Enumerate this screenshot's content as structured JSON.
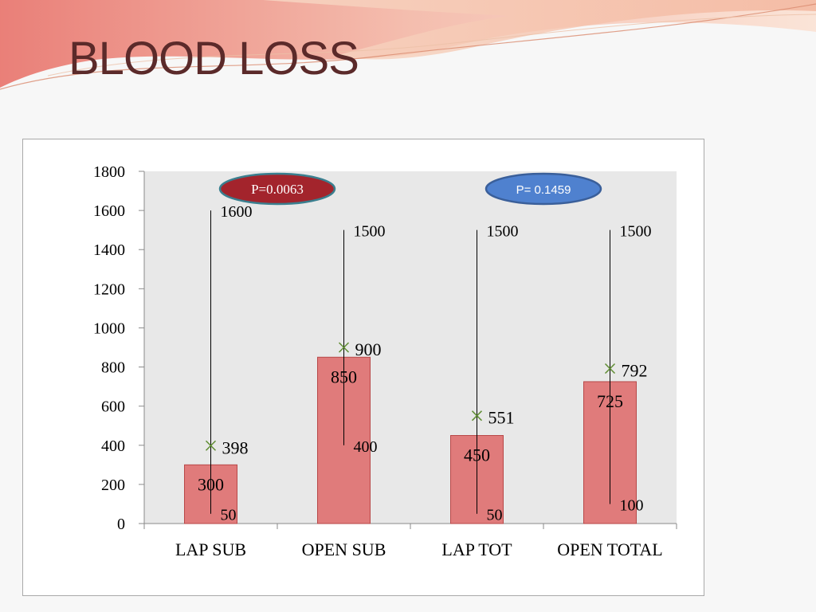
{
  "slide": {
    "title": "BLOOD LOSS"
  },
  "colors": {
    "bar_fill": "#e07b7b",
    "bar_stroke": "#b84848",
    "mean_marker": "#5e8c31",
    "plot_bg": "#e8e8e8",
    "title": "#5b2a2a"
  },
  "chart_data": {
    "type": "bar",
    "title": "",
    "xlabel": "",
    "ylabel": "",
    "ylim": [
      0,
      1800
    ],
    "yticks": [
      "0",
      "200",
      "400",
      "600",
      "800",
      "1000",
      "1200",
      "1400",
      "1600",
      "1800"
    ],
    "categories": [
      "LAP SUB",
      "OPEN SUB",
      "LAP TOT",
      "OPEN TOTAL"
    ],
    "series": [
      {
        "values": [
          300,
          850,
          450,
          725
        ],
        "value_labels": [
          "300",
          "850",
          "450",
          "725"
        ]
      }
    ],
    "range": {
      "min": [
        50,
        400,
        50,
        100
      ],
      "max": [
        1600,
        1500,
        1500,
        1500
      ],
      "min_labels": [
        "50",
        "400",
        "50",
        "100"
      ],
      "max_labels": [
        "1600",
        "1500",
        "1500",
        "1500"
      ]
    },
    "mean": {
      "values": [
        398,
        900,
        551,
        792
      ],
      "labels": [
        "398",
        "900",
        "551",
        "792"
      ]
    },
    "annotations": [
      {
        "text": "P=0.0063",
        "between": [
          0,
          1
        ],
        "fill": "#a3242c",
        "stroke": "#3a7f8f",
        "text_color": "#ffffff"
      },
      {
        "text": "P= 0.1459",
        "between": [
          2,
          3
        ],
        "fill": "#4f81cf",
        "stroke": "#3a5f9a",
        "text_color": "#ffffff"
      }
    ],
    "grid": false,
    "legend": "none"
  }
}
